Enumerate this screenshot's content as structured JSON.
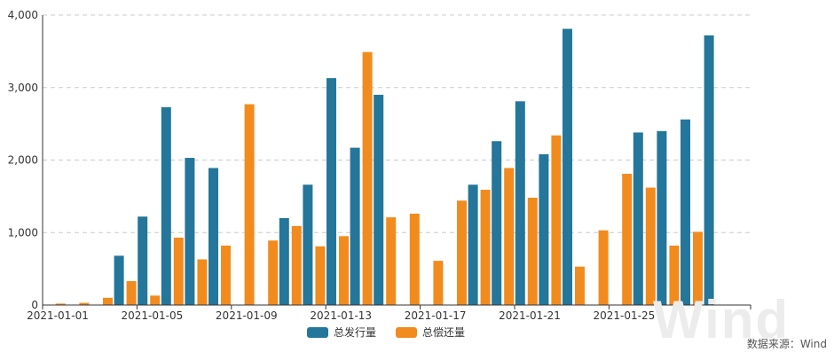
{
  "watermark": "Wind",
  "source": "数据来源：Wind",
  "colors": {
    "issuance": "#24769a",
    "repayment": "#f28b1e",
    "grid": "#cccccc",
    "axis": "#333333"
  },
  "chart_data": {
    "type": "bar",
    "ylim": [
      0,
      4000
    ],
    "yticks": [
      "0",
      "1,000",
      "2,000",
      "3,000",
      "4,000"
    ],
    "ytick_values": [
      0,
      1000,
      2000,
      3000,
      4000
    ],
    "grid": true,
    "legend_position": "bottom",
    "categories": [
      "2021-01-01",
      "2021-01-02",
      "2021-01-03",
      "2021-01-04",
      "2021-01-05",
      "2021-01-06",
      "2021-01-07",
      "2021-01-08",
      "2021-01-09",
      "2021-01-10",
      "2021-01-11",
      "2021-01-12",
      "2021-01-13",
      "2021-01-14",
      "2021-01-15",
      "2021-01-16",
      "2021-01-17",
      "2021-01-18",
      "2021-01-19",
      "2021-01-20",
      "2021-01-21",
      "2021-01-22",
      "2021-01-23",
      "2021-01-24",
      "2021-01-25",
      "2021-01-26",
      "2021-01-27",
      "2021-01-28",
      "2021-01-29",
      "2021-01-30"
    ],
    "xtick_labels": [
      "2021-01-01",
      "2021-01-05",
      "2021-01-09",
      "2021-01-13",
      "2021-01-17",
      "2021-01-21",
      "2021-01-25"
    ],
    "series": [
      {
        "name": "总发行量",
        "values": [
          0,
          0,
          0,
          680,
          1220,
          2730,
          2030,
          1890,
          0,
          0,
          1200,
          1660,
          3130,
          2170,
          2900,
          0,
          0,
          0,
          1660,
          2260,
          2810,
          2080,
          3810,
          0,
          0,
          2380,
          2400,
          2560,
          3720,
          0
        ]
      },
      {
        "name": "总偿还量",
        "values": [
          20,
          30,
          100,
          330,
          130,
          930,
          630,
          820,
          2770,
          890,
          1090,
          810,
          950,
          3490,
          1210,
          1260,
          610,
          1440,
          1590,
          1890,
          1480,
          2340,
          530,
          1030,
          1810,
          1620,
          820,
          1010,
          0,
          0
        ]
      }
    ]
  }
}
